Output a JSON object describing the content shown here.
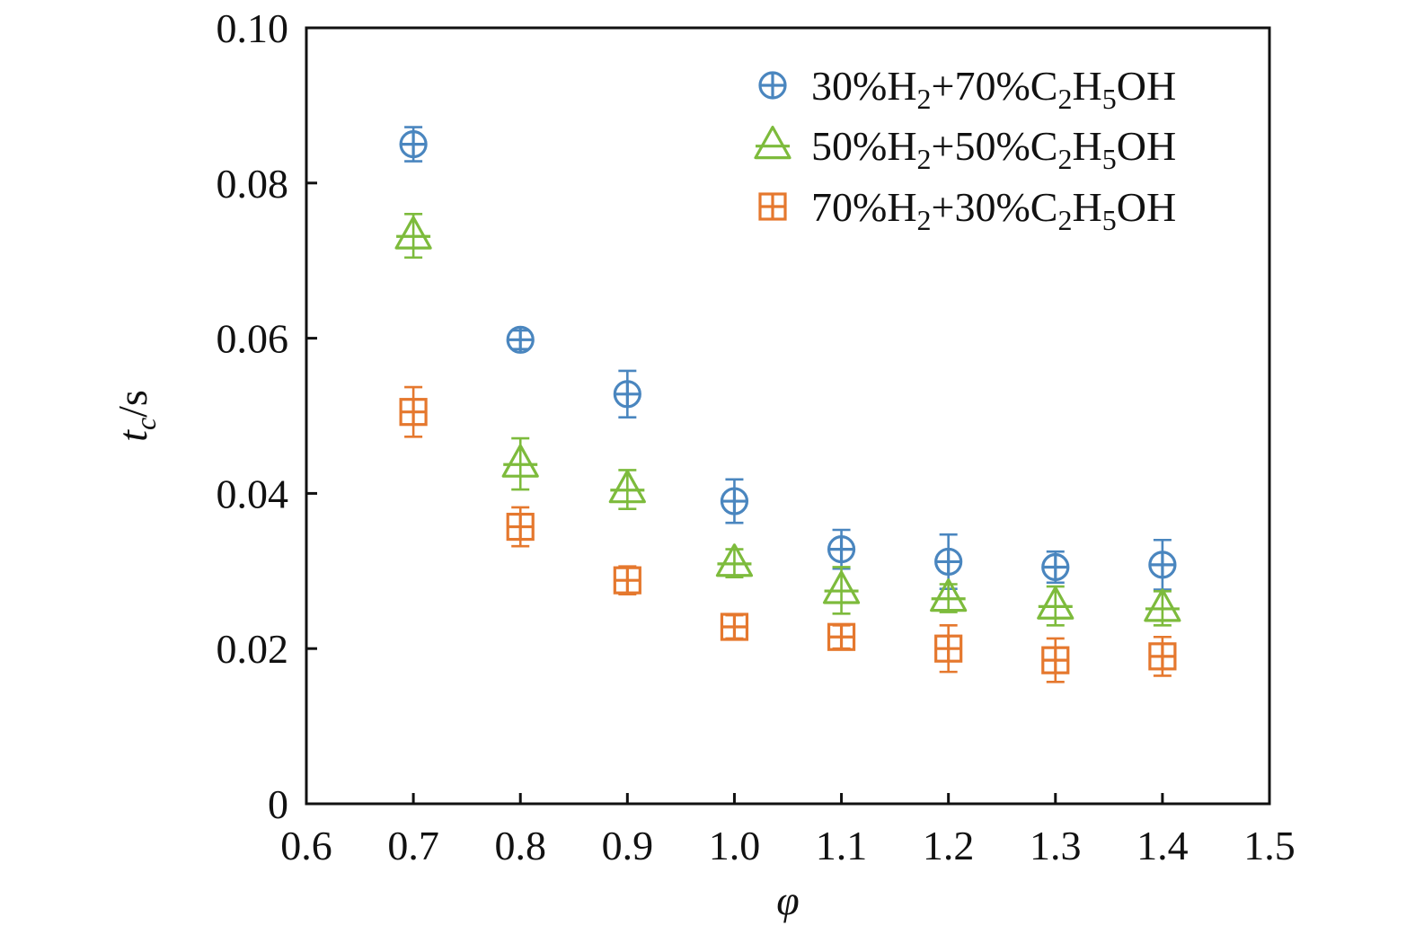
{
  "chart_data": {
    "type": "scatter",
    "title": "",
    "xlabel": "φ",
    "ylabel": {
      "main": "t",
      "sub": "c",
      "unit": "/s"
    },
    "xlim": [
      0.6,
      1.5
    ],
    "ylim": [
      0,
      0.1
    ],
    "x_ticks": [
      "0.6",
      "0.7",
      "0.8",
      "0.9",
      "1.0",
      "1.1",
      "1.2",
      "1.3",
      "1.4",
      "1.5"
    ],
    "y_ticks": [
      "0",
      "0.02",
      "0.04",
      "0.06",
      "0.08",
      "0.10"
    ],
    "x_tick_values": [
      0.6,
      0.7,
      0.8,
      0.9,
      1.0,
      1.1,
      1.2,
      1.3,
      1.4,
      1.5
    ],
    "y_tick_values": [
      0,
      0.02,
      0.04,
      0.06,
      0.08,
      0.1
    ],
    "grid": false,
    "legend_position": "top-right",
    "x": [
      0.7,
      0.8,
      0.9,
      1.0,
      1.1,
      1.2,
      1.3,
      1.4
    ],
    "series": [
      {
        "name": "30%H2+70%C2H5OH",
        "legend_parts": [
          "30%H",
          "2",
          "+70%C",
          "2",
          "H",
          "5",
          "OH"
        ],
        "marker": "circle-plus",
        "color": "#4a86bf",
        "values": [
          0.085,
          0.0598,
          0.0528,
          0.039,
          0.0328,
          0.0312,
          0.0305,
          0.0308
        ],
        "errors": [
          0.0022,
          0.0012,
          0.003,
          0.0028,
          0.0025,
          0.0035,
          0.002,
          0.0032
        ]
      },
      {
        "name": "50%H2+50%C2H5OH",
        "legend_parts": [
          "50%H",
          "2",
          "+50%C",
          "2",
          "H",
          "5",
          "OH"
        ],
        "marker": "triangle-plus",
        "color": "#7dbb3c",
        "values": [
          0.0732,
          0.0438,
          0.0405,
          0.031,
          0.0275,
          0.0265,
          0.0255,
          0.0252
        ],
        "errors": [
          0.0028,
          0.0033,
          0.0025,
          0.0018,
          0.003,
          0.0018,
          0.0025,
          0.0022
        ]
      },
      {
        "name": "70%H2+30%C2H5OH",
        "legend_parts": [
          "70%H",
          "2",
          "+30%C",
          "2",
          "H",
          "5",
          "OH"
        ],
        "marker": "square-plus",
        "color": "#e5782e",
        "values": [
          0.0505,
          0.0357,
          0.0288,
          0.0228,
          0.0215,
          0.02,
          0.0185,
          0.019
        ],
        "errors": [
          0.0032,
          0.0025,
          0.0018,
          0.0015,
          0.0015,
          0.003,
          0.0028,
          0.0025
        ]
      }
    ]
  }
}
